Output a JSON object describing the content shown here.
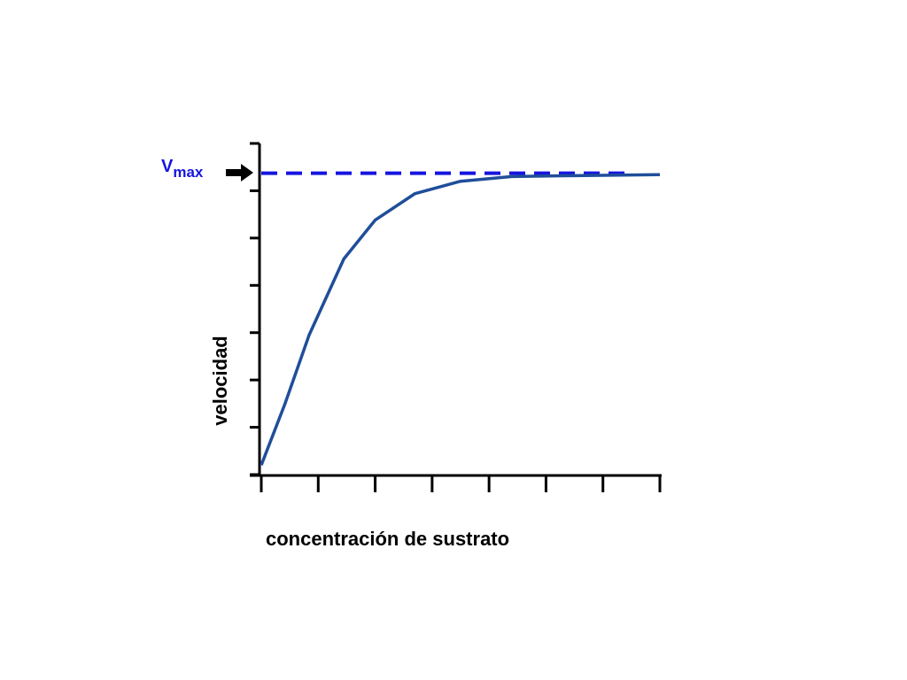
{
  "chart_data": {
    "type": "line",
    "x_label": "concentración de sustrato",
    "y_label": "velocidad",
    "x": [
      0,
      0.42,
      0.84,
      1.45,
      2.0,
      2.7,
      3.5,
      4.4,
      5.5,
      7
    ],
    "series": [
      {
        "color": "#1f4e9a",
        "values": [
          0.2,
          1.51,
          2.95,
          4.56,
          5.38,
          5.94,
          6.2,
          6.3,
          6.32,
          6.34
        ]
      }
    ],
    "xlim": [
      0,
      7
    ],
    "ylim": [
      0,
      7
    ],
    "xticks": [
      0,
      1,
      2,
      3,
      4,
      5,
      6,
      7
    ],
    "yticks": [
      0,
      1,
      2,
      3,
      4,
      5,
      6,
      7
    ],
    "vmax": 6.37,
    "vmax_color": "#1515e0",
    "vmax_label": {
      "main": "V",
      "sub": "max"
    }
  }
}
